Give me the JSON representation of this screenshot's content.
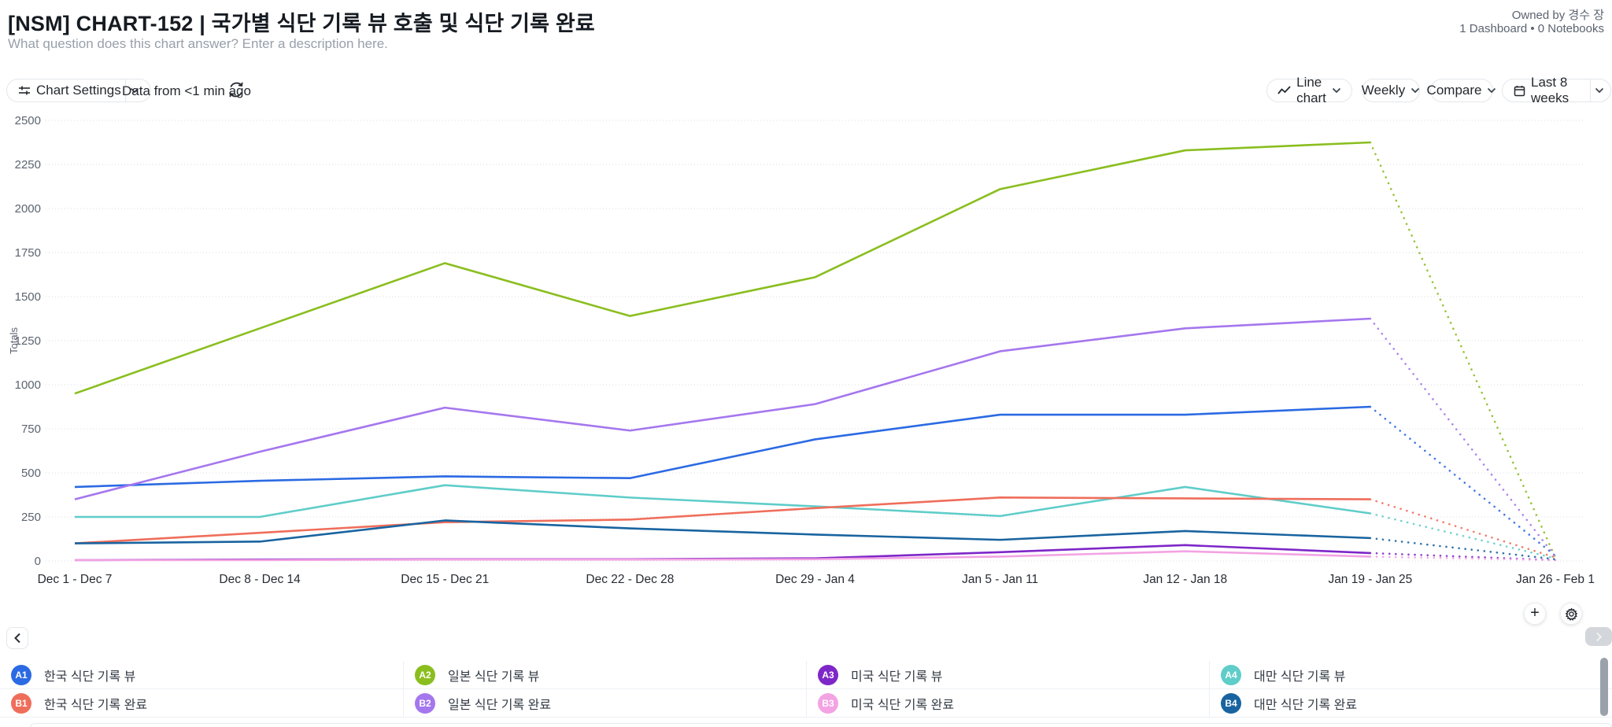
{
  "header": {
    "title": "[NSM] CHART-152 | 국가별 식단 기록 뷰 호출 및 식단 기록 완료",
    "description_placeholder": "What question does this chart answer? Enter a description here.",
    "owned_by": "Owned by 경수 장",
    "meta": "1 Dashboard • 0 Notebooks"
  },
  "toolbar": {
    "chart_settings_label": "Chart Settings",
    "data_freshness": "Data from <1 min ago",
    "chart_type_label": "Line chart",
    "granularity_label": "Weekly",
    "compare_label": "Compare",
    "date_range_label": "Last 8 weeks"
  },
  "chart_data": {
    "type": "line",
    "title": "",
    "ylabel": "Totals",
    "ylim": [
      0,
      2500
    ],
    "ytick_step": 250,
    "grid": true,
    "legend_position": "bottom",
    "last_segment_style": "dotted",
    "x_categories": [
      "Dec 1 - Dec 7",
      "Dec 8 - Dec 14",
      "Dec 15 - Dec 21",
      "Dec 22 - Dec 28",
      "Dec 29 - Jan 4",
      "Jan 5 - Jan 11",
      "Jan 12 - Jan 18",
      "Jan 19 - Jan 25",
      "Jan 26 - Feb 1"
    ],
    "series": [
      {
        "id": "A1",
        "name": "한국 식단 기록 뷰",
        "color": "#2b6ae3",
        "values": [
          420,
          455,
          480,
          470,
          690,
          830,
          830,
          875,
          30
        ]
      },
      {
        "id": "A2",
        "name": "일본 식단 기록 뷰",
        "color": "#8abe1f",
        "values": [
          950,
          1320,
          1690,
          1390,
          1610,
          2110,
          2330,
          2375,
          20
        ]
      },
      {
        "id": "A3",
        "name": "미국 식단 기록 뷰",
        "color": "#7e27c8",
        "values": [
          5,
          8,
          10,
          10,
          15,
          50,
          90,
          45,
          5
        ]
      },
      {
        "id": "A4",
        "name": "대만 식단 기록 뷰",
        "color": "#5fcdc9",
        "values": [
          250,
          250,
          430,
          360,
          310,
          255,
          420,
          270,
          15
        ]
      },
      {
        "id": "B1",
        "name": "한국 식단 기록 완료",
        "color": "#ef6e5b",
        "values": [
          100,
          160,
          220,
          235,
          300,
          360,
          355,
          350,
          20
        ]
      },
      {
        "id": "B2",
        "name": "일본 식단 기록 완료",
        "color": "#a577ee",
        "values": [
          350,
          620,
          870,
          740,
          890,
          1190,
          1320,
          1375,
          25
        ]
      },
      {
        "id": "B3",
        "name": "미국 식단 기록 완료",
        "color": "#f3a3e3",
        "values": [
          5,
          5,
          8,
          8,
          10,
          25,
          55,
          25,
          5
        ]
      },
      {
        "id": "B4",
        "name": "대만 식단 기록 완료",
        "color": "#1964a0",
        "values": [
          100,
          110,
          230,
          185,
          150,
          120,
          170,
          130,
          10
        ]
      }
    ]
  },
  "legend": {
    "items": [
      {
        "id": "A1",
        "label": "한국 식단 기록 뷰",
        "color": "#2b6ae3"
      },
      {
        "id": "A2",
        "label": "일본 식단 기록 뷰",
        "color": "#8abe1f"
      },
      {
        "id": "A3",
        "label": "미국 식단 기록 뷰",
        "color": "#7e27c8"
      },
      {
        "id": "A4",
        "label": "대만 식단 기록 뷰",
        "color": "#5fcdc9"
      },
      {
        "id": "B1",
        "label": "한국 식단 기록 완료",
        "color": "#ef6e5b"
      },
      {
        "id": "B2",
        "label": "일본 식단 기록 완료",
        "color": "#a577ee"
      },
      {
        "id": "B3",
        "label": "미국 식단 기록 완료",
        "color": "#f3a3e3"
      },
      {
        "id": "B4",
        "label": "대만 식단 기록 완료",
        "color": "#1964a0"
      }
    ]
  }
}
